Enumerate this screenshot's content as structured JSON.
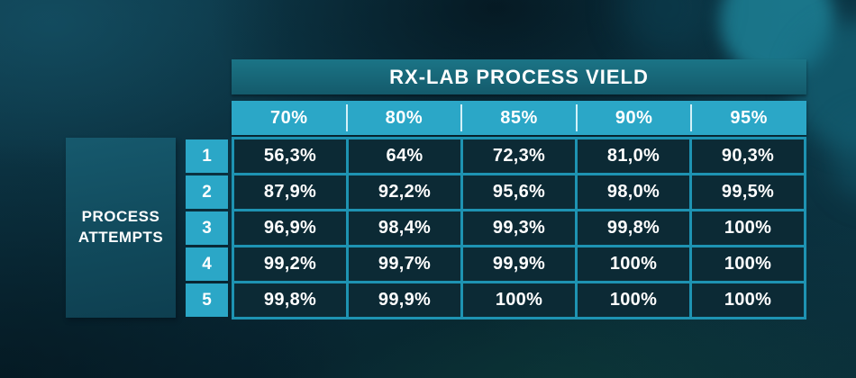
{
  "labels": {
    "row_axis_line1": "PROCESS",
    "row_axis_line2": "ATTEMPTS"
  },
  "chart_data": {
    "type": "table",
    "title": "RX-LAB PROCESS VIELD",
    "rows_label": "PROCESS ATTEMPTS",
    "columns": [
      "70%",
      "80%",
      "85%",
      "90%",
      "95%"
    ],
    "rows": [
      {
        "attempt": "1",
        "values": [
          "56,3%",
          "64%",
          "72,3%",
          "81,0%",
          "90,3%"
        ]
      },
      {
        "attempt": "2",
        "values": [
          "87,9%",
          "92,2%",
          "95,6%",
          "98,0%",
          "99,5%"
        ]
      },
      {
        "attempt": "3",
        "values": [
          "96,9%",
          "98,4%",
          "99,3%",
          "99,8%",
          "100%"
        ]
      },
      {
        "attempt": "4",
        "values": [
          "99,2%",
          "99,7%",
          "99,9%",
          "100%",
          "100%"
        ]
      },
      {
        "attempt": "5",
        "values": [
          "99,8%",
          "99,9%",
          "100%",
          "100%",
          "100%"
        ]
      }
    ],
    "legend_position": "none",
    "grid": true
  },
  "colors": {
    "cyan_accent": "#2BA7C7",
    "header_bar_teal": "#17707F",
    "cell_background": "#0C2A35",
    "grid_line": "#1E93B2",
    "divider_light": "#D4F1F8",
    "text": "#FFFFFF",
    "background_teal": "#0B3140"
  }
}
